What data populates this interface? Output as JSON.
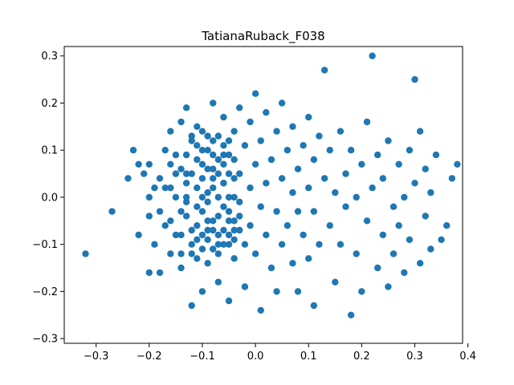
{
  "chart_data": {
    "type": "scatter",
    "title": "TatianaRuback_F038",
    "xlabel": "",
    "ylabel": "",
    "xlim": [
      -0.36,
      0.39
    ],
    "ylim": [
      -0.31,
      0.32
    ],
    "xticks": [
      -0.3,
      -0.2,
      -0.1,
      0.0,
      0.1,
      0.2,
      0.3,
      0.4
    ],
    "xtick_labels": [
      "−0.3",
      "−0.2",
      "−0.1",
      "0.0",
      "0.1",
      "0.2",
      "0.3",
      "0.4"
    ],
    "yticks": [
      -0.3,
      -0.2,
      -0.1,
      0.0,
      0.1,
      0.2,
      0.3
    ],
    "ytick_labels": [
      "−0.3",
      "−0.2",
      "−0.1",
      "0.0",
      "0.1",
      "0.2",
      "0.3"
    ],
    "grid": false,
    "marker_color": "#1f77b4",
    "series": [
      {
        "points": [
          [
            -0.32,
            -0.12
          ],
          [
            -0.27,
            -0.03
          ],
          [
            -0.24,
            0.04
          ],
          [
            -0.23,
            0.1
          ],
          [
            -0.22,
            0.07
          ],
          [
            -0.22,
            -0.08
          ],
          [
            -0.21,
            0.05
          ],
          [
            -0.2,
            0.07
          ],
          [
            -0.2,
            0.0
          ],
          [
            -0.2,
            -0.04
          ],
          [
            -0.2,
            -0.16
          ],
          [
            -0.19,
            0.02
          ],
          [
            -0.19,
            -0.1
          ],
          [
            -0.18,
            -0.16
          ],
          [
            -0.18,
            0.04
          ],
          [
            -0.17,
            -0.06
          ],
          [
            -0.17,
            0.1
          ],
          [
            -0.16,
            0.02
          ],
          [
            -0.16,
            -0.12
          ],
          [
            -0.16,
            0.14
          ],
          [
            -0.15,
            0.0
          ],
          [
            -0.15,
            -0.08
          ],
          [
            -0.14,
            -0.15
          ],
          [
            -0.14,
            0.06
          ],
          [
            -0.14,
            0.16
          ],
          [
            -0.13,
            0.19
          ],
          [
            -0.13,
            -0.04
          ],
          [
            -0.13,
            0.03
          ],
          [
            -0.12,
            -0.12
          ],
          [
            -0.12,
            0.12
          ],
          [
            -0.12,
            -0.23
          ],
          [
            -0.11,
            0.08
          ],
          [
            -0.11,
            -0.02
          ],
          [
            -0.11,
            0.15
          ],
          [
            -0.1,
            -0.08
          ],
          [
            -0.1,
            0.04
          ],
          [
            -0.1,
            -0.2
          ],
          [
            -0.09,
            0.1
          ],
          [
            -0.09,
            -0.14
          ],
          [
            -0.09,
            0.01
          ],
          [
            -0.08,
            0.2
          ],
          [
            -0.08,
            -0.05
          ],
          [
            -0.08,
            0.06
          ],
          [
            -0.07,
            -0.1
          ],
          [
            -0.07,
            0.13
          ],
          [
            -0.07,
            -0.18
          ],
          [
            -0.06,
            0.03
          ],
          [
            -0.06,
            -0.02
          ],
          [
            -0.06,
            0.17
          ],
          [
            -0.05,
            -0.08
          ],
          [
            -0.05,
            0.09
          ],
          [
            -0.05,
            -0.22
          ],
          [
            -0.04,
            0.0
          ],
          [
            -0.04,
            0.14
          ],
          [
            -0.04,
            -0.13
          ],
          [
            -0.03,
            0.05
          ],
          [
            -0.03,
            -0.04
          ],
          [
            -0.03,
            0.19
          ],
          [
            -0.02,
            -0.1
          ],
          [
            -0.02,
            0.11
          ],
          [
            -0.02,
            -0.19
          ],
          [
            -0.01,
            0.02
          ],
          [
            -0.01,
            -0.06
          ],
          [
            -0.01,
            0.16
          ],
          [
            0.0,
            0.07
          ],
          [
            0.0,
            -0.12
          ],
          [
            0.0,
            0.22
          ],
          [
            0.01,
            -0.02
          ],
          [
            0.01,
            0.12
          ],
          [
            0.01,
            -0.24
          ],
          [
            0.02,
            0.03
          ],
          [
            0.02,
            -0.08
          ],
          [
            0.02,
            0.18
          ],
          [
            0.03,
            -0.15
          ],
          [
            0.03,
            0.08
          ],
          [
            0.04,
            -0.03
          ],
          [
            0.04,
            0.14
          ],
          [
            0.04,
            -0.2
          ],
          [
            0.05,
            0.04
          ],
          [
            0.05,
            -0.1
          ],
          [
            0.05,
            0.2
          ],
          [
            0.06,
            -0.06
          ],
          [
            0.06,
            0.1
          ],
          [
            0.07,
            -0.14
          ],
          [
            0.07,
            0.01
          ],
          [
            0.07,
            0.15
          ],
          [
            0.08,
            -0.03
          ],
          [
            0.08,
            0.06
          ],
          [
            0.08,
            -0.2
          ],
          [
            0.09,
            0.11
          ],
          [
            0.09,
            -0.08
          ],
          [
            0.1,
            0.02
          ],
          [
            0.1,
            0.17
          ],
          [
            0.1,
            -0.13
          ],
          [
            0.11,
            0.08
          ],
          [
            0.11,
            -0.03
          ],
          [
            0.11,
            -0.23
          ],
          [
            0.12,
            0.13
          ],
          [
            0.12,
            -0.1
          ],
          [
            0.13,
            0.04
          ],
          [
            0.13,
            0.27
          ],
          [
            0.14,
            -0.06
          ],
          [
            0.14,
            0.1
          ],
          [
            0.15,
            -0.18
          ],
          [
            0.15,
            0.01
          ],
          [
            0.16,
            0.14
          ],
          [
            0.16,
            -0.1
          ],
          [
            0.17,
            0.05
          ],
          [
            0.17,
            -0.02
          ],
          [
            0.18,
            -0.25
          ],
          [
            0.18,
            0.1
          ],
          [
            0.19,
            -0.12
          ],
          [
            0.19,
            0.0
          ],
          [
            0.2,
            0.07
          ],
          [
            0.2,
            -0.2
          ],
          [
            0.21,
            -0.05
          ],
          [
            0.21,
            0.16
          ],
          [
            0.22,
            0.02
          ],
          [
            0.22,
            0.3
          ],
          [
            0.23,
            -0.15
          ],
          [
            0.23,
            0.09
          ],
          [
            0.24,
            -0.08
          ],
          [
            0.24,
            0.04
          ],
          [
            0.25,
            -0.19
          ],
          [
            0.25,
            0.12
          ],
          [
            0.26,
            -0.02
          ],
          [
            0.26,
            -0.12
          ],
          [
            0.27,
            0.07
          ],
          [
            0.27,
            -0.06
          ],
          [
            0.28,
            0.0
          ],
          [
            0.28,
            -0.16
          ],
          [
            0.29,
            0.1
          ],
          [
            0.29,
            -0.09
          ],
          [
            0.3,
            0.25
          ],
          [
            0.3,
            0.03
          ],
          [
            0.31,
            -0.14
          ],
          [
            0.31,
            0.14
          ],
          [
            0.32,
            -0.04
          ],
          [
            0.32,
            0.06
          ],
          [
            0.33,
            -0.11
          ],
          [
            0.33,
            0.01
          ],
          [
            0.34,
            0.09
          ],
          [
            0.35,
            -0.09
          ],
          [
            0.36,
            -0.06
          ],
          [
            0.37,
            0.04
          ],
          [
            0.38,
            0.07
          ],
          [
            -0.13,
            -0.01
          ],
          [
            -0.12,
            0.05
          ],
          [
            -0.11,
            -0.06
          ],
          [
            -0.1,
            0.1
          ],
          [
            -0.1,
            -0.03
          ],
          [
            -0.09,
            0.06
          ],
          [
            -0.09,
            -0.09
          ],
          [
            -0.08,
            0.02
          ],
          [
            -0.08,
            0.12
          ],
          [
            -0.07,
            -0.04
          ],
          [
            -0.07,
            0.08
          ],
          [
            -0.06,
            -0.07
          ],
          [
            -0.06,
            0.11
          ],
          [
            -0.05,
            0.0
          ],
          [
            -0.05,
            0.05
          ],
          [
            -0.04,
            -0.09
          ],
          [
            -0.04,
            0.08
          ],
          [
            -0.03,
            -0.01
          ],
          [
            -0.12,
            -0.07
          ],
          [
            -0.11,
            0.02
          ],
          [
            -0.1,
            -0.11
          ],
          [
            -0.09,
            0.13
          ],
          [
            -0.08,
            -0.07
          ],
          [
            -0.07,
            0.0
          ],
          [
            -0.06,
            0.07
          ],
          [
            -0.05,
            -0.05
          ],
          [
            -0.14,
            -0.03
          ],
          [
            -0.13,
            0.09
          ],
          [
            -0.12,
            -0.1
          ],
          [
            -0.11,
            0.11
          ],
          [
            -0.1,
            0.0
          ],
          [
            -0.09,
            -0.05
          ],
          [
            -0.08,
            0.09
          ],
          [
            -0.07,
            -0.12
          ],
          [
            -0.06,
            0.03
          ],
          [
            -0.05,
            -0.1
          ],
          [
            -0.04,
            0.04
          ],
          [
            -0.03,
            -0.07
          ],
          [
            -0.15,
            0.05
          ],
          [
            -0.14,
            -0.08
          ],
          [
            -0.13,
            0.0
          ],
          [
            -0.12,
            0.13
          ],
          [
            -0.11,
            -0.09
          ],
          [
            -0.1,
            0.07
          ],
          [
            -0.09,
            -0.01
          ],
          [
            -0.08,
            -0.11
          ],
          [
            -0.07,
            0.05
          ],
          [
            -0.06,
            -0.1
          ],
          [
            -0.05,
            0.12
          ],
          [
            -0.04,
            -0.05
          ],
          [
            -0.16,
            -0.05
          ],
          [
            -0.15,
            0.09
          ],
          [
            -0.17,
            0.02
          ],
          [
            -0.18,
            -0.03
          ],
          [
            -0.16,
            0.07
          ],
          [
            -0.14,
            -0.12
          ],
          [
            -0.13,
            0.05
          ],
          [
            -0.11,
            -0.13
          ],
          [
            -0.1,
            0.14
          ],
          [
            -0.09,
            -0.07
          ],
          [
            -0.08,
            0.04
          ],
          [
            -0.07,
            -0.08
          ],
          [
            -0.06,
            0.09
          ],
          [
            -0.05,
            -0.03
          ],
          [
            -0.04,
            -0.07
          ]
        ]
      }
    ]
  }
}
